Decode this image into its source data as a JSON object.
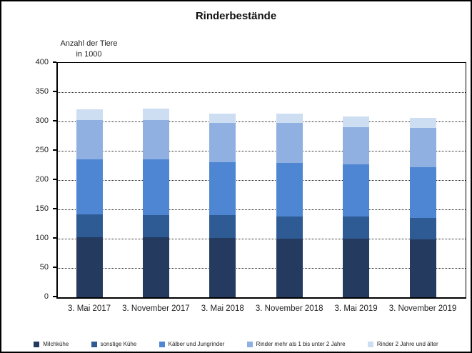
{
  "title": "Rinderbestände",
  "y_axis_title": {
    "line1": "Anzahl der Tiere",
    "line2": "in 1000"
  },
  "chart_data": {
    "type": "bar",
    "stacked": true,
    "title": "Rinderbestände",
    "ylabel": "Anzahl der Tiere in 1000",
    "xlabel": "",
    "ylim": [
      0,
      400
    ],
    "yticks": [
      0,
      50,
      100,
      150,
      200,
      250,
      300,
      350,
      400
    ],
    "grid": "horizontal dotted lines every 50 units",
    "legend_position": "bottom",
    "categories": [
      "3. Mai 2017",
      "3. November 2017",
      "3. Mai 2018",
      "3. November 2018",
      "3. Mai 2019",
      "3. November 2019"
    ],
    "series": [
      {
        "name": "Milchkühe",
        "color": "#243a5e",
        "values": [
          103,
          102,
          101,
          100,
          100,
          99
        ]
      },
      {
        "name": "sonstige Kühe",
        "color": "#2f5b94",
        "values": [
          39,
          38,
          39,
          38,
          38,
          36
        ]
      },
      {
        "name": "Kälber und Jungrinder",
        "color": "#4e86d3",
        "values": [
          93,
          95,
          90,
          91,
          89,
          87
        ]
      },
      {
        "name": "Rinder mehr als 1 bis unter 2 Jahre",
        "color": "#8fb0e1",
        "values": [
          68,
          68,
          67,
          68,
          63,
          67
        ]
      },
      {
        "name": "Rinder 2 Jahre und älter",
        "color": "#cdddf2",
        "values": [
          18,
          19,
          16,
          17,
          18,
          17
        ]
      }
    ],
    "totals": [
      321,
      322,
      313,
      314,
      308,
      306
    ]
  }
}
